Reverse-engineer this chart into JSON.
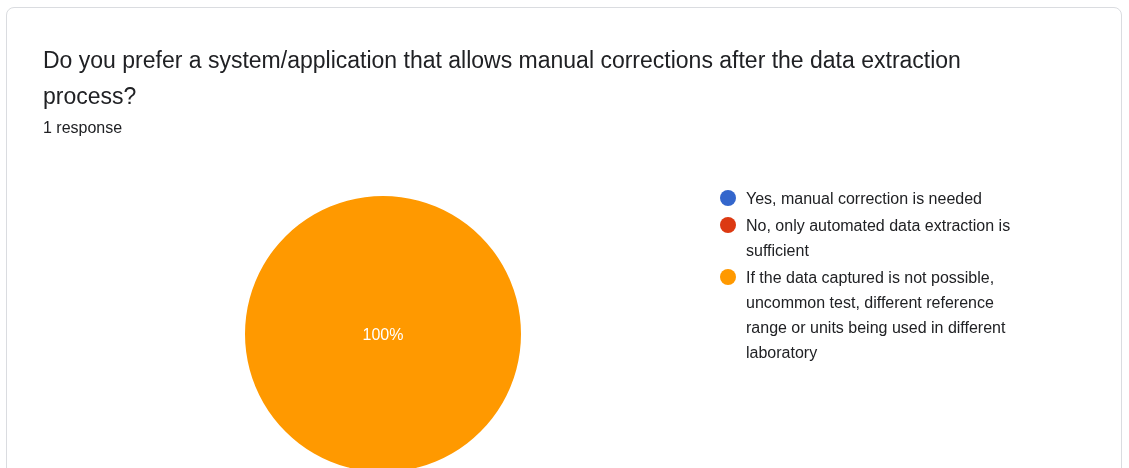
{
  "chart_data": {
    "type": "pie",
    "title": "Do you prefer a system/application that allows manual corrections after the data extraction process?",
    "subtitle": "1 response",
    "categories": [
      "Yes, manual correction is needed",
      "No, only automated data extraction is sufficient",
      "If the data captured is not possible, uncommon test, different reference range or units being used in different laboratory"
    ],
    "values": [
      0,
      0,
      100
    ],
    "colors": [
      "#3366cc",
      "#dc3912",
      "#ff9900"
    ],
    "value_labels": [
      null,
      null,
      "100%"
    ],
    "legend": "right"
  }
}
